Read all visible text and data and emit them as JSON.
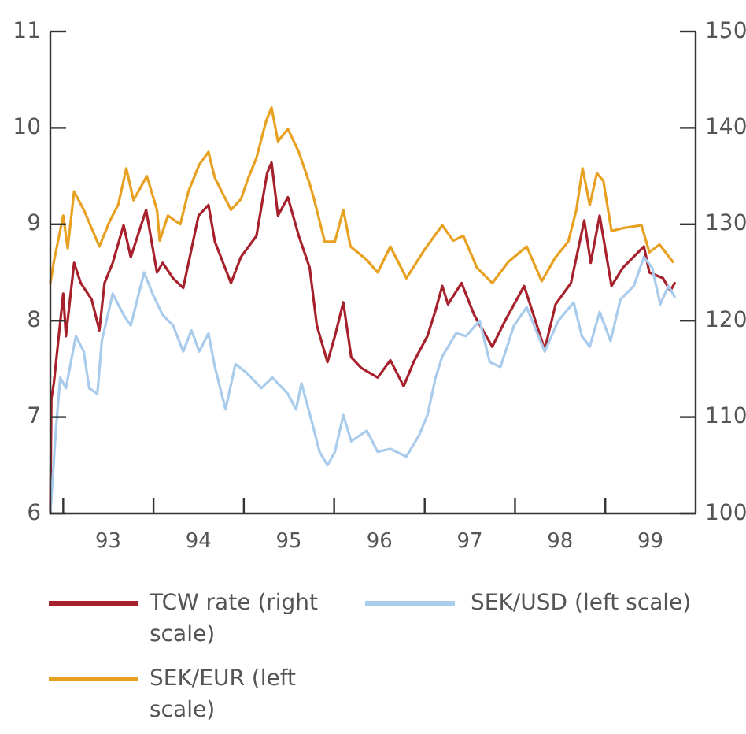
{
  "chart_data": {
    "type": "line",
    "xlim": [
      "1992-11-10",
      "2000-01-01"
    ],
    "xticks": [
      {
        "value": "1993-01-01",
        "label": null
      },
      {
        "value": "1994-01-01",
        "label": null
      },
      {
        "value": "1995-01-01",
        "label": null
      },
      {
        "value": "1996-01-01",
        "label": null
      },
      {
        "value": "1997-01-01",
        "label": null
      },
      {
        "value": "1998-01-01",
        "label": null
      },
      {
        "value": "1999-01-01",
        "label": null
      },
      {
        "value": "1993-07-02",
        "label": "93"
      },
      {
        "value": "1994-07-02",
        "label": "94"
      },
      {
        "value": "1995-07-02",
        "label": "95"
      },
      {
        "value": "1996-07-02",
        "label": "96"
      },
      {
        "value": "1997-07-02",
        "label": "97"
      },
      {
        "value": "1998-07-02",
        "label": "98"
      },
      {
        "value": "1999-07-02",
        "label": "99"
      }
    ],
    "ylim": [
      6,
      11
    ],
    "yticks": [
      6,
      7,
      8,
      9,
      10,
      11
    ],
    "y2lim": [
      100,
      150
    ],
    "y2ticks": [
      100,
      110,
      120,
      130,
      140,
      150
    ],
    "legend": "bottom",
    "grid": false,
    "marker": "none",
    "line_style": "solid",
    "series": [
      {
        "name": "TCW rate (right scale)",
        "color": "#a6212b",
        "axis": "y2",
        "x": [
          "1992-11-10",
          "1992-11-14",
          "1992-11-24",
          "1993-01-01",
          "1993-01-12",
          "1993-02-14",
          "1993-03-13",
          "1993-04-26",
          "1993-05-27",
          "1993-06-17",
          "1993-07-20",
          "1993-09-02",
          "1993-10-01",
          "1993-12-02",
          "1994-01-15",
          "1994-02-07",
          "1994-03-21",
          "1994-05-01",
          "1994-07-02",
          "1994-08-11",
          "1994-09-06",
          "1994-11-10",
          "1994-12-20",
          "1995-02-21",
          "1995-04-05",
          "1995-04-23",
          "1995-05-19",
          "1995-06-28",
          "1995-08-11",
          "1995-09-24",
          "1995-10-23",
          "1995-12-05",
          "1996-01-04",
          "1996-02-07",
          "1996-03-10",
          "1996-04-19",
          "1996-06-25",
          "1996-08-15",
          "1996-10-08",
          "1996-11-17",
          "1997-01-12",
          "1997-02-14",
          "1997-03-13",
          "1997-04-05",
          "1997-05-30",
          "1997-07-20",
          "1997-10-01",
          "1997-11-24",
          "1998-02-07",
          "1998-05-01",
          "1998-06-14",
          "1998-08-15",
          "1998-10-08",
          "1998-11-03",
          "1998-12-09",
          "1999-01-26",
          "1999-03-13",
          "1999-06-06",
          "1999-06-28",
          "1999-08-22",
          "1999-09-21",
          "1999-10-08"
        ],
        "values": [
          100,
          111.9,
          113.5,
          122.8,
          118.4,
          126,
          123.9,
          122.2,
          119,
          123.9,
          126,
          129.9,
          126.6,
          131.5,
          125,
          126,
          124.4,
          123.4,
          130.9,
          132,
          128.2,
          123.9,
          126.6,
          128.8,
          135.3,
          136.4,
          130.9,
          132.8,
          128.8,
          125.5,
          119.5,
          115.7,
          118.4,
          121.9,
          116.2,
          115.1,
          114.1,
          115.9,
          113.2,
          115.7,
          118.4,
          121.1,
          123.6,
          121.7,
          123.9,
          120.6,
          117.3,
          120.1,
          123.6,
          117,
          121.7,
          123.9,
          130.4,
          126,
          130.9,
          123.6,
          125.5,
          127.7,
          125,
          124.4,
          123.1,
          123.9
        ]
      },
      {
        "name": "SEK/EUR (left scale)",
        "color": "#e8a020",
        "x": [
          "1992-11-10",
          "1992-11-24",
          "1993-01-01",
          "1993-01-19",
          "1993-02-14",
          "1993-03-25",
          "1993-05-27",
          "1993-07-09",
          "1993-08-11",
          "1993-09-13",
          "1993-10-12",
          "1993-12-05",
          "1994-01-15",
          "1994-01-26",
          "1994-02-28",
          "1994-04-19",
          "1994-05-22",
          "1994-07-05",
          "1994-08-11",
          "1994-09-06",
          "1994-11-10",
          "1994-12-20",
          "1995-01-19",
          "1995-02-21",
          "1995-04-01",
          "1995-04-23",
          "1995-05-19",
          "1995-06-28",
          "1995-08-11",
          "1995-09-24",
          "1995-10-12",
          "1995-11-24",
          "1996-01-04",
          "1996-02-07",
          "1996-03-07",
          "1996-05-12",
          "1996-06-25",
          "1996-08-15",
          "1996-10-19",
          "1997-01-01",
          "1997-03-13",
          "1997-04-26",
          "1997-06-06",
          "1997-07-31",
          "1997-10-01",
          "1997-12-05",
          "1998-02-17",
          "1998-04-19",
          "1998-06-14",
          "1998-08-04",
          "1998-09-06",
          "1998-10-01",
          "1998-10-30",
          "1998-11-28",
          "1998-12-24",
          "1999-01-26",
          "1999-03-13",
          "1999-05-27",
          "1999-06-28",
          "1999-08-08",
          "1999-10-01"
        ],
        "values": [
          8.39,
          8.61,
          9.09,
          8.75,
          9.34,
          9.15,
          8.77,
          9.04,
          9.2,
          9.58,
          9.25,
          9.5,
          9.15,
          8.83,
          9.09,
          9,
          9.34,
          9.62,
          9.75,
          9.48,
          9.15,
          9.26,
          9.48,
          9.69,
          10.07,
          10.21,
          9.86,
          9.99,
          9.75,
          9.42,
          9.26,
          8.82,
          8.82,
          9.15,
          8.77,
          8.63,
          8.5,
          8.77,
          8.44,
          8.74,
          8.99,
          8.83,
          8.88,
          8.55,
          8.39,
          8.61,
          8.77,
          8.41,
          8.66,
          8.82,
          9.15,
          9.58,
          9.2,
          9.53,
          9.45,
          8.93,
          8.96,
          8.99,
          8.71,
          8.79,
          8.61
        ]
      },
      {
        "name": "SEK/USD (left scale)",
        "color": "#a9cbec",
        "x": [
          "1992-11-10",
          "1992-12-02",
          "1992-12-20",
          "1993-01-12",
          "1993-02-21",
          "1993-03-25",
          "1993-04-16",
          "1993-05-19",
          "1993-06-06",
          "1993-07-20",
          "1993-09-02",
          "1993-10-01",
          "1993-11-24",
          "1993-12-28",
          "1994-02-07",
          "1994-03-21",
          "1994-05-01",
          "1994-06-03",
          "1994-07-05",
          "1994-08-11",
          "1994-09-06",
          "1994-10-19",
          "1994-11-28",
          "1995-01-12",
          "1995-03-13",
          "1995-04-26",
          "1995-06-28",
          "1995-07-31",
          "1995-08-22",
          "1995-10-01",
          "1995-11-03",
          "1995-12-05",
          "1996-01-04",
          "1996-02-07",
          "1996-03-10",
          "1996-05-12",
          "1996-06-25",
          "1996-08-15",
          "1996-10-19",
          "1996-12-09",
          "1997-01-12",
          "1997-02-14",
          "1997-03-13",
          "1997-05-08",
          "1997-06-17",
          "1997-08-11",
          "1997-09-21",
          "1997-11-03",
          "1997-12-28",
          "1998-02-17",
          "1998-05-01",
          "1998-06-25",
          "1998-08-26",
          "1998-09-28",
          "1998-10-30",
          "1998-12-09",
          "1999-01-22",
          "1999-03-03",
          "1999-04-26",
          "1999-06-06",
          "1999-07-09",
          "1999-08-11",
          "1999-09-13",
          "1999-10-08"
        ],
        "values": [
          6,
          6.86,
          7.41,
          7.3,
          7.84,
          7.68,
          7.3,
          7.24,
          7.79,
          8.28,
          8.06,
          7.95,
          8.5,
          8.28,
          8.06,
          7.95,
          7.68,
          7.9,
          7.68,
          7.87,
          7.52,
          7.08,
          7.55,
          7.46,
          7.3,
          7.41,
          7.24,
          7.08,
          7.35,
          6.97,
          6.64,
          6.5,
          6.64,
          7.02,
          6.75,
          6.86,
          6.64,
          6.67,
          6.59,
          6.81,
          7.02,
          7.41,
          7.63,
          7.87,
          7.84,
          8,
          7.57,
          7.52,
          7.95,
          8.14,
          7.68,
          8,
          8.19,
          7.84,
          7.73,
          8.09,
          7.79,
          8.22,
          8.36,
          8.66,
          8.55,
          8.17,
          8.36,
          8.25
        ]
      }
    ]
  }
}
